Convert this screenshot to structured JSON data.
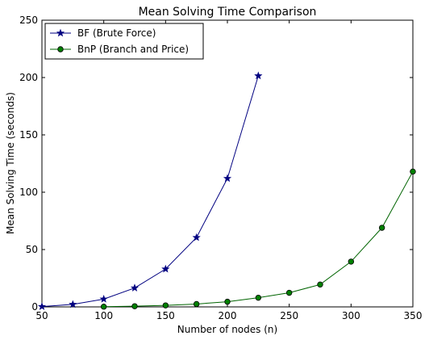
{
  "chart_data": {
    "type": "line",
    "title": "Mean Solving Time Comparison",
    "xlabel": "Number of nodes (n)",
    "ylabel": "Mean Solving Time (seconds)",
    "xlim": [
      50,
      350
    ],
    "ylim": [
      0,
      250
    ],
    "xticks": [
      50,
      100,
      150,
      200,
      250,
      300,
      350
    ],
    "yticks": [
      0,
      50,
      100,
      150,
      200,
      250
    ],
    "grid": false,
    "legend_position": "top-left",
    "series": [
      {
        "name": "BF (Brute Force)",
        "color": "#000080",
        "marker": "star",
        "x": [
          50,
          75,
          100,
          125,
          150,
          175,
          200,
          225
        ],
        "y": [
          0.3,
          2.2,
          6.8,
          16.5,
          33.0,
          60.5,
          112.0,
          201.5
        ]
      },
      {
        "name": "BnP (Branch and Price)",
        "color": "#006400",
        "marker": "circle",
        "x": [
          100,
          125,
          150,
          175,
          200,
          225,
          250,
          275,
          300,
          325,
          350
        ],
        "y": [
          0.2,
          0.6,
          1.3,
          2.5,
          4.5,
          8.0,
          12.3,
          19.5,
          39.5,
          69.0,
          118.0
        ]
      }
    ]
  }
}
